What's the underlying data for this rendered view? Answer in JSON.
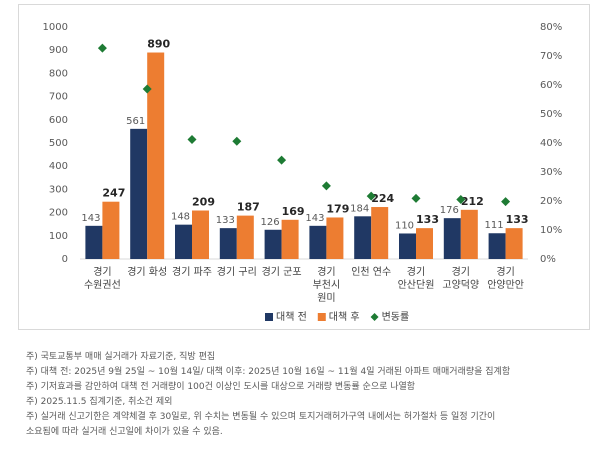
{
  "chart_data": {
    "type": "bar_scatter",
    "categories": [
      "경기 수원권선",
      "경기 화성",
      "경기 파주",
      "경기 구리",
      "경기 군포",
      "경기 부천시 원미",
      "인천 연수",
      "경기 안산단원",
      "경기 고양덕양",
      "경기 안양만안"
    ],
    "series": [
      {
        "name": "대책 전",
        "color": "#203864",
        "values": [
          143,
          561,
          148,
          133,
          126,
          143,
          184,
          110,
          176,
          111
        ]
      },
      {
        "name": "대책 후",
        "color": "#ed7d31",
        "values": [
          247,
          890,
          209,
          187,
          169,
          179,
          224,
          133,
          212,
          133
        ]
      },
      {
        "name": "변동률",
        "color": "#1e7b34",
        "axis": "y2",
        "values": [
          72.7,
          58.6,
          41.2,
          40.6,
          34.1,
          25.2,
          21.7,
          20.9,
          20.5,
          19.8
        ]
      }
    ],
    "ylim": [
      0,
      1000
    ],
    "yticks": [
      0,
      100,
      200,
      300,
      400,
      500,
      600,
      700,
      800,
      900,
      1000
    ],
    "y2lim": [
      0,
      80
    ],
    "y2ticks": [
      {
        "value": 0,
        "label": "0%"
      },
      {
        "value": 10,
        "label": "10%"
      },
      {
        "value": 20,
        "label": "20%"
      },
      {
        "value": 30,
        "label": "30%"
      },
      {
        "value": 40,
        "label": "40%"
      },
      {
        "value": 50,
        "label": "50%"
      },
      {
        "value": 60,
        "label": "60%"
      },
      {
        "value": 70,
        "label": "70%"
      },
      {
        "value": 80,
        "label": "80%"
      }
    ],
    "grid": false,
    "legend": "bottom"
  },
  "notes": [
    "주) 국토교통부 매매 실거래가 자료기준, 직방 편집",
    "주) 대책 전: 2025년 9월 25일 ~ 10월 14일/ 대책 이후: 2025년 10월 16일 ~ 11월 4일 거래된 아파트 매매거래량을 집계함",
    "주) 기저효과를 감안하여 대책 전 거래량이 100건 이상인 도시를 대상으로 거래량 변동률 순으로 나열함",
    "주) 2025.11.5 집계기준, 취소건 제외",
    "주) 실거래 신고기한은 계약체결 후 30일로, 위 수치는 변동될 수 있으며 토지거래허가구역 내에서는 허가절차 등 일정 기간이 소요됨에 따라 실거래 신고일에 차이가 있을 수 있음."
  ]
}
